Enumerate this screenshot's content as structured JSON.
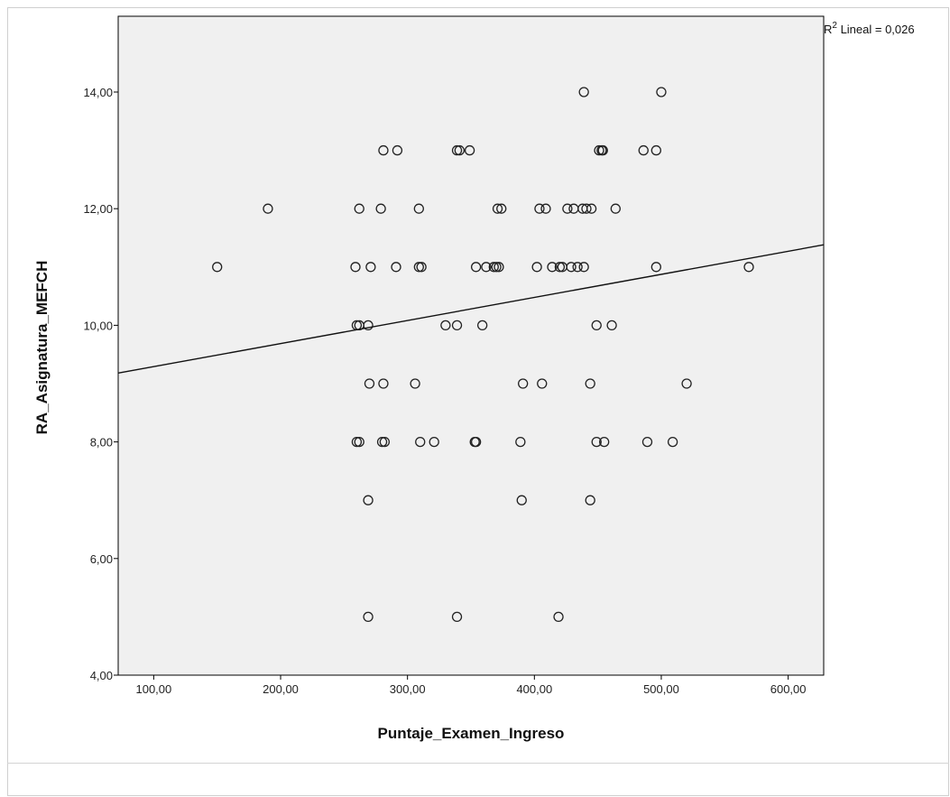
{
  "chart_data": {
    "type": "scatter",
    "xlabel": "Puntaje_Examen_Ingreso",
    "ylabel": "RA_Asignatura_MEFCH",
    "xlim": [
      72,
      628
    ],
    "ylim": [
      4,
      15.3
    ],
    "x_ticks": [
      100,
      200,
      300,
      400,
      500,
      600
    ],
    "x_tick_labels": [
      "100,00",
      "200,00",
      "300,00",
      "400,00",
      "500,00",
      "600,00"
    ],
    "y_ticks": [
      4,
      6,
      8,
      10,
      12,
      14
    ],
    "y_tick_labels": [
      "4,00",
      "6,00",
      "8,00",
      "10,00",
      "12,00",
      "14,00"
    ],
    "grid": false,
    "background_color": "#f0f0f0",
    "marker": "open-circle",
    "points": [
      {
        "x": 150,
        "y": 11
      },
      {
        "x": 190,
        "y": 12
      },
      {
        "x": 259,
        "y": 11
      },
      {
        "x": 260,
        "y": 10
      },
      {
        "x": 262,
        "y": 10
      },
      {
        "x": 260,
        "y": 8
      },
      {
        "x": 262,
        "y": 8
      },
      {
        "x": 262,
        "y": 12
      },
      {
        "x": 269,
        "y": 10
      },
      {
        "x": 269,
        "y": 7
      },
      {
        "x": 269,
        "y": 5
      },
      {
        "x": 270,
        "y": 9
      },
      {
        "x": 271,
        "y": 11
      },
      {
        "x": 279,
        "y": 12
      },
      {
        "x": 280,
        "y": 8
      },
      {
        "x": 282,
        "y": 8
      },
      {
        "x": 281,
        "y": 9
      },
      {
        "x": 281,
        "y": 13
      },
      {
        "x": 291,
        "y": 11
      },
      {
        "x": 292,
        "y": 13
      },
      {
        "x": 306,
        "y": 9
      },
      {
        "x": 309,
        "y": 11
      },
      {
        "x": 311,
        "y": 11
      },
      {
        "x": 309,
        "y": 12
      },
      {
        "x": 310,
        "y": 8
      },
      {
        "x": 321,
        "y": 8
      },
      {
        "x": 330,
        "y": 10
      },
      {
        "x": 339,
        "y": 5
      },
      {
        "x": 339,
        "y": 10
      },
      {
        "x": 339,
        "y": 13
      },
      {
        "x": 341,
        "y": 13
      },
      {
        "x": 349,
        "y": 13
      },
      {
        "x": 353,
        "y": 8
      },
      {
        "x": 354,
        "y": 8
      },
      {
        "x": 354,
        "y": 11
      },
      {
        "x": 359,
        "y": 10
      },
      {
        "x": 362,
        "y": 11
      },
      {
        "x": 368,
        "y": 11
      },
      {
        "x": 370,
        "y": 11
      },
      {
        "x": 372,
        "y": 11
      },
      {
        "x": 371,
        "y": 12
      },
      {
        "x": 374,
        "y": 12
      },
      {
        "x": 389,
        "y": 8
      },
      {
        "x": 390,
        "y": 7
      },
      {
        "x": 391,
        "y": 9
      },
      {
        "x": 402,
        "y": 11
      },
      {
        "x": 404,
        "y": 12
      },
      {
        "x": 406,
        "y": 9
      },
      {
        "x": 409,
        "y": 12
      },
      {
        "x": 414,
        "y": 11
      },
      {
        "x": 419,
        "y": 5
      },
      {
        "x": 420,
        "y": 11
      },
      {
        "x": 422,
        "y": 11
      },
      {
        "x": 426,
        "y": 12
      },
      {
        "x": 429,
        "y": 11
      },
      {
        "x": 431,
        "y": 12
      },
      {
        "x": 434,
        "y": 11
      },
      {
        "x": 438,
        "y": 12
      },
      {
        "x": 441,
        "y": 12
      },
      {
        "x": 439,
        "y": 11
      },
      {
        "x": 439,
        "y": 14
      },
      {
        "x": 444,
        "y": 7
      },
      {
        "x": 444,
        "y": 9
      },
      {
        "x": 445,
        "y": 12
      },
      {
        "x": 449,
        "y": 8
      },
      {
        "x": 449,
        "y": 10
      },
      {
        "x": 451,
        "y": 13
      },
      {
        "x": 453,
        "y": 13
      },
      {
        "x": 454,
        "y": 13
      },
      {
        "x": 455,
        "y": 8
      },
      {
        "x": 461,
        "y": 10
      },
      {
        "x": 464,
        "y": 12
      },
      {
        "x": 486,
        "y": 13
      },
      {
        "x": 489,
        "y": 8
      },
      {
        "x": 496,
        "y": 13
      },
      {
        "x": 496,
        "y": 11
      },
      {
        "x": 500,
        "y": 14
      },
      {
        "x": 509,
        "y": 8
      },
      {
        "x": 520,
        "y": 9
      },
      {
        "x": 569,
        "y": 11
      }
    ],
    "fit_line": {
      "type": "linear",
      "label_prefix": "R",
      "label_superscript": "2",
      "label_suffix": " Lineal = 0,026",
      "x": [
        72,
        628
      ],
      "y": [
        9.18,
        11.38
      ]
    }
  }
}
